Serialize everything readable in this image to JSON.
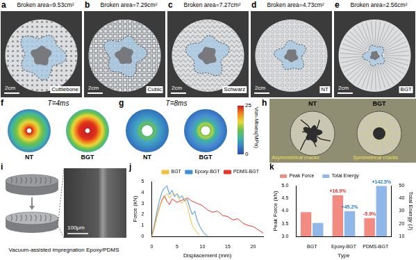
{
  "photos": [
    {
      "panel": "a",
      "caption": "Broken area=9.53cm²",
      "name": "Cuttlebone",
      "scale_bar": "2cm"
    },
    {
      "panel": "b",
      "caption": "Broken area=7.29cm²",
      "name": "Cubic",
      "scale_bar": "2cm"
    },
    {
      "panel": "c",
      "caption": "Broken area=7.27cm²",
      "name": "Schwarz",
      "scale_bar": "2cm"
    },
    {
      "panel": "d",
      "caption": "Broken area=4.73cm²",
      "name": "NT",
      "scale_bar": "2cm"
    },
    {
      "panel": "e",
      "caption": "Broken area=2.56cm²",
      "name": "BGT",
      "scale_bar": "2cm"
    }
  ],
  "stress": [
    {
      "panel": "f",
      "time": "T=4ms",
      "labels": [
        "NT",
        "BGT"
      ]
    },
    {
      "panel": "g",
      "time": "T=8ms",
      "labels": [
        "NT",
        "BGT"
      ]
    }
  ],
  "colorbar": {
    "label": "Von-Mises(MPa)",
    "range": [
      0,
      25
    ],
    "ticks": [
      0,
      25
    ]
  },
  "cracks": {
    "panel": "h",
    "labels": [
      "NT",
      "BGT"
    ],
    "notes": [
      "Asymmetrical cracks",
      "Symmetrical cracks"
    ]
  },
  "impregnation": {
    "panel": "i",
    "caption": "Vacuum-assisted impregnation Epoxy/PDMS",
    "scale_bar": "100μm"
  },
  "chart_data": [
    {
      "panel": "j",
      "type": "line",
      "x_label": "Displacement (mm)",
      "y_label": "Force (kN)",
      "xlim": [
        0,
        22
      ],
      "xticks": [
        0,
        5,
        10,
        15,
        20
      ],
      "ylim": [
        0,
        5
      ],
      "yticks": [
        0,
        1,
        2,
        3,
        4,
        5
      ],
      "grid": false,
      "legend": "upper right",
      "series": [
        {
          "name": "BGT",
          "color": "#f2c03a",
          "x": [
            0,
            0.5,
            1,
            1.5,
            2,
            2.5,
            3,
            3.5,
            4,
            4.5,
            5,
            5.5,
            6,
            6.5,
            7,
            7.5,
            8,
            8.5,
            9,
            9.5
          ],
          "values": [
            0,
            0.8,
            1.8,
            2.6,
            3.2,
            3.6,
            3.9,
            3.5,
            3.8,
            3.9,
            3.7,
            3.3,
            3.0,
            3.4,
            2.8,
            1.8,
            1.0,
            0.6,
            0.3,
            0.1
          ]
        },
        {
          "name": "Epoxy-BGT",
          "color": "#3b8fd9",
          "x": [
            0,
            0.5,
            1,
            1.5,
            2,
            2.5,
            3,
            3.5,
            4,
            4.5,
            5,
            5.5,
            6,
            6.5,
            7,
            7.5,
            8,
            8.5,
            9,
            9.5,
            10,
            10.5,
            11
          ],
          "values": [
            0,
            1.0,
            2.2,
            3.2,
            4.0,
            4.4,
            4.6,
            3.8,
            4.2,
            3.6,
            3.9,
            3.5,
            3.7,
            3.2,
            3.4,
            2.6,
            2.0,
            2.3,
            1.4,
            0.9,
            0.5,
            0.2,
            0.05
          ]
        },
        {
          "name": "PDMS-BGT",
          "color": "#e8372c",
          "x": [
            0,
            0.5,
            1,
            1.5,
            2,
            2.5,
            3,
            3.5,
            4,
            5,
            6,
            7,
            8,
            9,
            10,
            11,
            12,
            13,
            14,
            15,
            16,
            17,
            18,
            19,
            20,
            21,
            22
          ],
          "values": [
            0,
            0.8,
            1.8,
            2.6,
            3.3,
            3.7,
            3.2,
            2.9,
            3.4,
            3.1,
            3.3,
            3.5,
            3.2,
            3.0,
            2.8,
            2.4,
            2.2,
            2.3,
            1.9,
            1.8,
            1.5,
            1.6,
            1.2,
            1.0,
            0.9,
            0.6,
            0.3
          ]
        }
      ]
    },
    {
      "panel": "k",
      "type": "bar",
      "x_label": "Type",
      "y_label": "Peak Force (kN)",
      "y2_label": "Total Energy (J)",
      "categories": [
        "BGT",
        "Epoxy-BGT",
        "PDMS-BGT"
      ],
      "series": [
        {
          "name": "Peak Force",
          "color": "#f28b82",
          "values": [
            3.95,
            4.62,
            3.72
          ]
        },
        {
          "name": "Total Energy",
          "color": "#8fb8e8",
          "axis": "y2",
          "values": [
            20.5,
            29.8,
            49.7
          ]
        }
      ],
      "ylim": [
        3,
        5
      ],
      "yticks": [
        {
          "value": 3,
          "label": "3.0"
        },
        3.5,
        {
          "value": 4,
          "label": "4.0"
        },
        4.5,
        {
          "value": 5,
          "label": "5.0"
        }
      ],
      "y2lim": [
        10,
        50
      ],
      "y2ticks": [
        10,
        20,
        30,
        40,
        50
      ],
      "grid": false,
      "legend": "upper left",
      "annotations": [
        {
          "series": "Peak Force",
          "category": "Epoxy-BGT",
          "text": "+16.9%"
        },
        {
          "series": "Total Energy",
          "category": "Epoxy-BGT",
          "text": "+45.2%"
        },
        {
          "series": "Peak Force",
          "category": "PDMS-BGT",
          "text": "-5.9%"
        },
        {
          "series": "Total Energy",
          "category": "PDMS-BGT",
          "text": "+142.5%"
        }
      ]
    }
  ]
}
